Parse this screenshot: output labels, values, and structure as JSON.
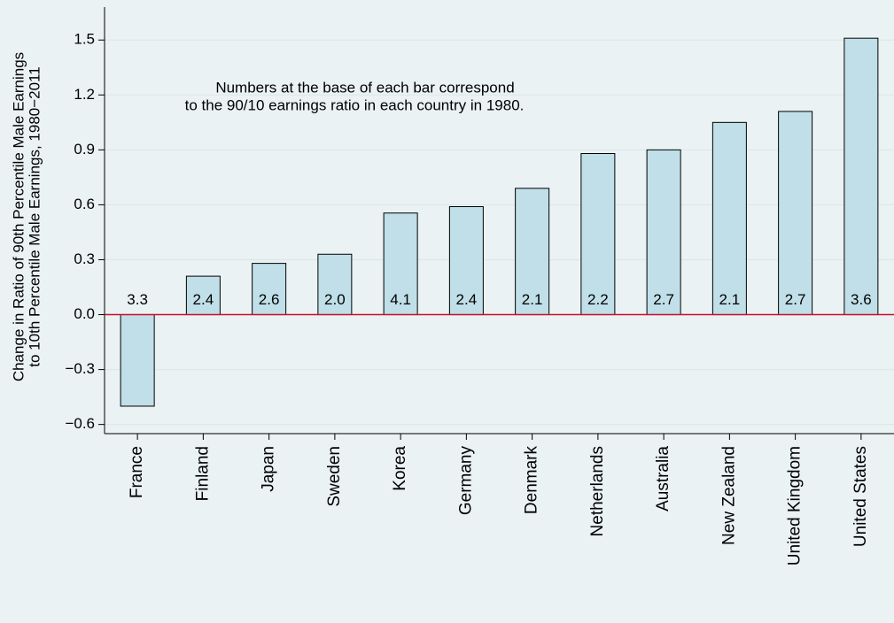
{
  "chart_data": {
    "type": "bar",
    "y_axis_label": [
      "Change in Ratio of 90th Percentile Male Earnings",
      "to 10th Percentile Male Earnings, 1980−2011"
    ],
    "annotation": [
      "Numbers at the base of each bar correspond",
      "to the 90/10 earnings ratio in each country in 1980."
    ],
    "categories": [
      "France",
      "Finland",
      "Japan",
      "Sweden",
      "Korea",
      "Germany",
      "Denmark",
      "Netherlands",
      "Australia",
      "New Zealand",
      "United Kingdom",
      "United States"
    ],
    "values": [
      -0.5,
      0.21,
      0.28,
      0.33,
      0.555,
      0.59,
      0.69,
      0.88,
      0.9,
      1.05,
      1.11,
      1.51
    ],
    "base_labels": [
      "3.3",
      "2.4",
      "2.6",
      "2.0",
      "4.1",
      "2.4",
      "2.1",
      "2.2",
      "2.7",
      "2.1",
      "2.7",
      "3.6"
    ],
    "color": "#c0dfe8",
    "zero_line_color": "#c8102e",
    "ylim": [
      -0.65,
      1.68
    ],
    "yticks": [
      {
        "value": -0.6,
        "label": "−0.6"
      },
      {
        "value": -0.3,
        "label": "−0.3"
      },
      {
        "value": 0,
        "label": "0.0"
      },
      {
        "value": 0.3,
        "label": "0.3"
      },
      {
        "value": 0.6,
        "label": "0.6"
      },
      {
        "value": 0.9,
        "label": "0.9"
      },
      {
        "value": 1.2,
        "label": "1.2"
      },
      {
        "value": 1.5,
        "label": "1.5"
      }
    ],
    "grid": true
  }
}
